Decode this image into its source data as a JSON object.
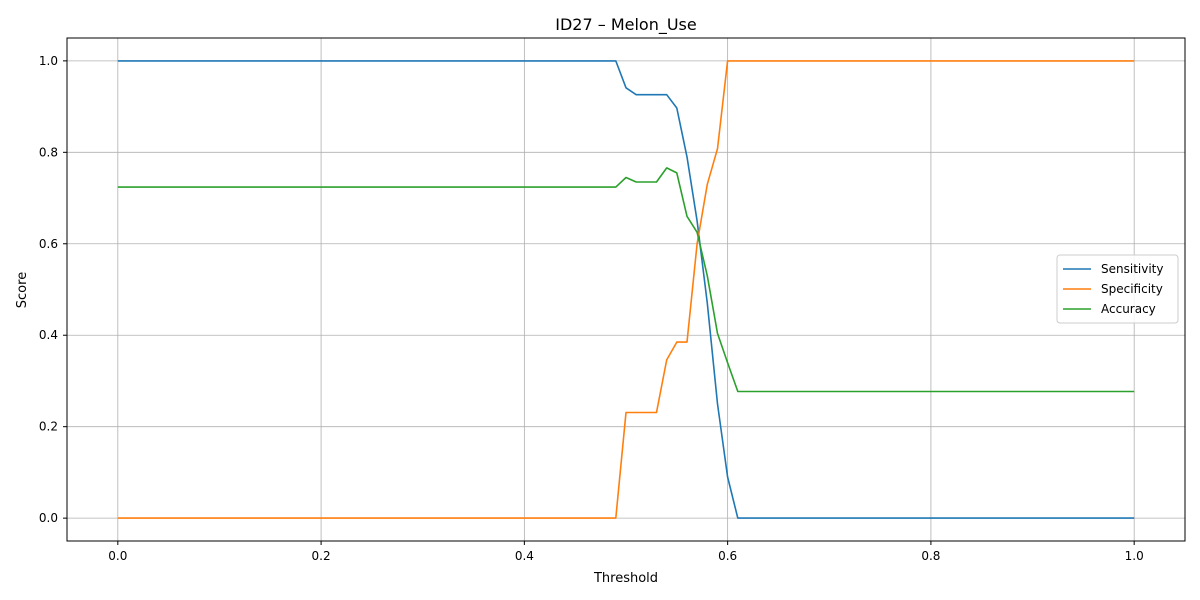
{
  "chart_data": {
    "type": "line",
    "title": "ID27 – Melon_Use",
    "xlabel": "Threshold",
    "ylabel": "Score",
    "xlim": [
      -0.05,
      1.05
    ],
    "ylim": [
      -0.05,
      1.05
    ],
    "grid": true,
    "legend_position": "center-right",
    "x_ticks": [
      0.0,
      0.2,
      0.4,
      0.6,
      0.8,
      1.0
    ],
    "x_tick_labels": [
      "0.0",
      "0.2",
      "0.4",
      "0.6",
      "0.8",
      "1.0"
    ],
    "y_ticks": [
      0.0,
      0.2,
      0.4,
      0.6,
      0.8,
      1.0
    ],
    "y_tick_labels": [
      "0.0",
      "0.2",
      "0.4",
      "0.6",
      "0.8",
      "1.0"
    ],
    "series": [
      {
        "name": "Sensitivity",
        "color": "#1f77b4",
        "points": [
          [
            0.0,
            1.0
          ],
          [
            0.49,
            1.0
          ],
          [
            0.5,
            0.941
          ],
          [
            0.51,
            0.926
          ],
          [
            0.54,
            0.926
          ],
          [
            0.55,
            0.897
          ],
          [
            0.56,
            0.79
          ],
          [
            0.57,
            0.65
          ],
          [
            0.58,
            0.47
          ],
          [
            0.59,
            0.25
          ],
          [
            0.6,
            0.09
          ],
          [
            0.61,
            0.0
          ],
          [
            1.0,
            0.0
          ]
        ]
      },
      {
        "name": "Specificity",
        "color": "#ff7f0e",
        "points": [
          [
            0.0,
            0.0
          ],
          [
            0.49,
            0.0
          ],
          [
            0.5,
            0.231
          ],
          [
            0.53,
            0.231
          ],
          [
            0.54,
            0.346
          ],
          [
            0.55,
            0.385
          ],
          [
            0.56,
            0.385
          ],
          [
            0.57,
            0.6
          ],
          [
            0.58,
            0.73
          ],
          [
            0.59,
            0.808
          ],
          [
            0.6,
            1.0
          ],
          [
            1.0,
            1.0
          ]
        ]
      },
      {
        "name": "Accuracy",
        "color": "#2ca02c",
        "points": [
          [
            0.0,
            0.724
          ],
          [
            0.49,
            0.724
          ],
          [
            0.5,
            0.745
          ],
          [
            0.51,
            0.735
          ],
          [
            0.53,
            0.735
          ],
          [
            0.54,
            0.766
          ],
          [
            0.55,
            0.755
          ],
          [
            0.56,
            0.66
          ],
          [
            0.57,
            0.625
          ],
          [
            0.58,
            0.53
          ],
          [
            0.59,
            0.404
          ],
          [
            0.6,
            0.34
          ],
          [
            0.61,
            0.277
          ],
          [
            1.0,
            0.277
          ]
        ]
      }
    ]
  }
}
